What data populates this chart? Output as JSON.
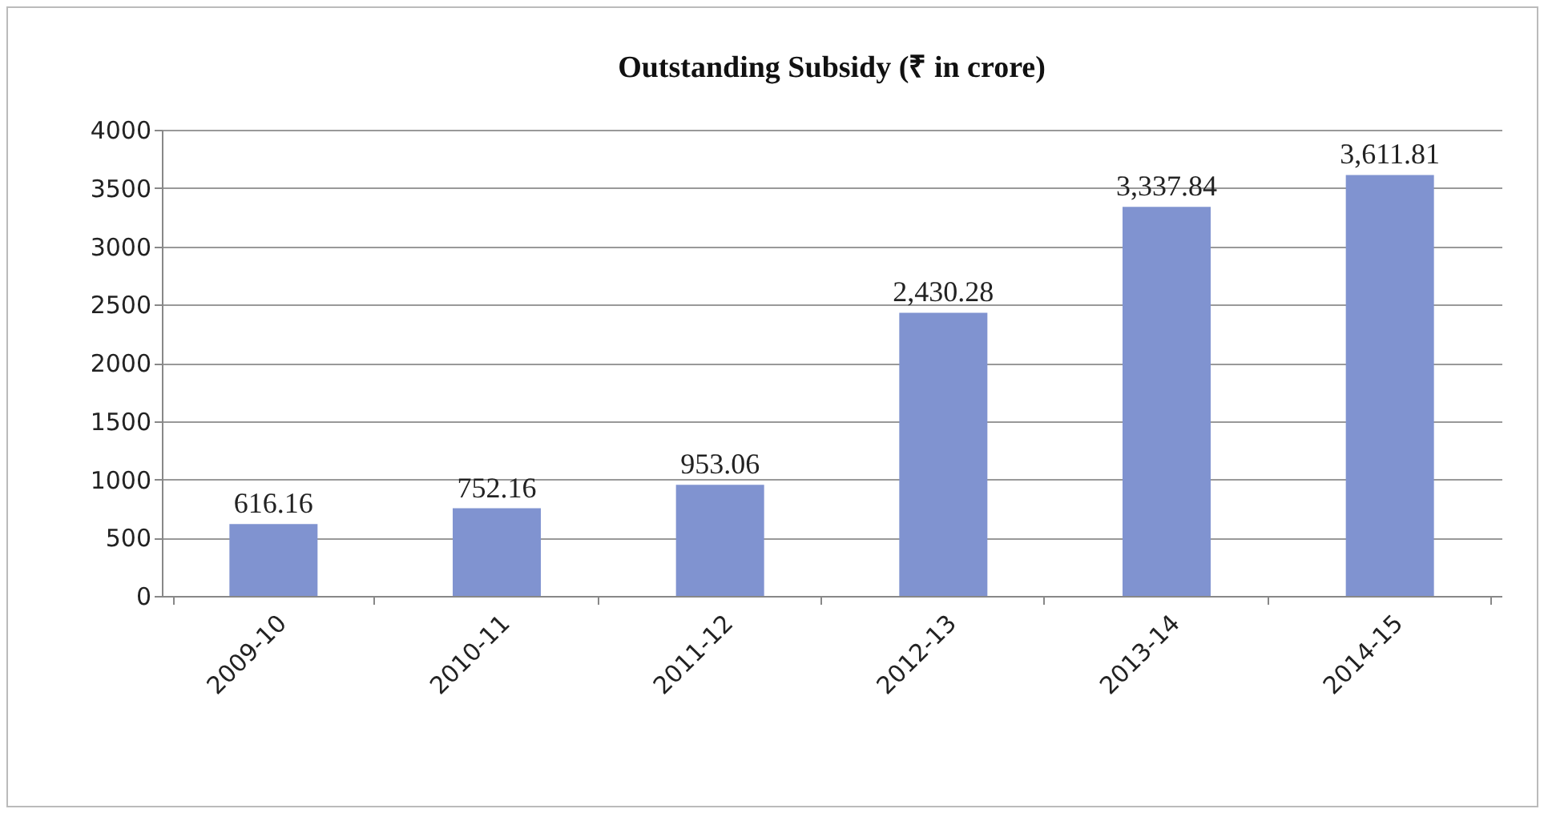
{
  "chart_data": {
    "type": "bar",
    "title": "Outstanding Subsidy (₹ in crore)",
    "categories": [
      "2009-10",
      "2010-11",
      "2011-12",
      "2012-13",
      "2013-14",
      "2014-15"
    ],
    "values": [
      616.16,
      752.16,
      953.06,
      2430.28,
      3337.84,
      3611.81
    ],
    "value_labels": [
      "616.16",
      "752.16",
      "953.06",
      "2,430.28",
      "3,337.84",
      "3,611.81"
    ],
    "color": "#8093d0",
    "ylim": [
      0,
      4000
    ],
    "yticks": [
      0,
      500,
      1000,
      1500,
      2000,
      2500,
      3000,
      3500,
      4000
    ],
    "grid": "y"
  }
}
